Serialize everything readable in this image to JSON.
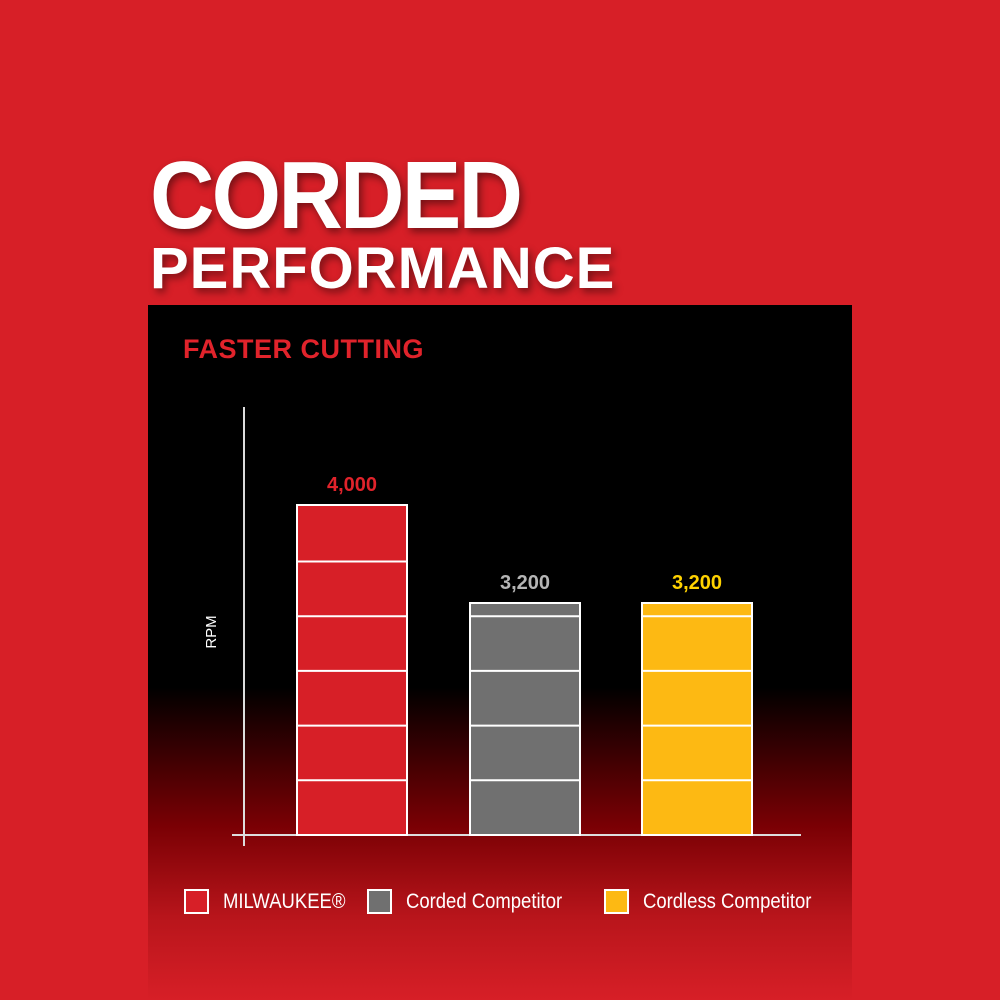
{
  "header": {
    "title_line1": "CORDED",
    "title_line2": "PERFORMANCE"
  },
  "chart_data": {
    "type": "bar",
    "title": "FASTER CUTTING",
    "ylabel": "RPM",
    "xlabel": "",
    "categories": [
      "MILWAUKEE®",
      "Corded Competitor",
      "Cordless Competitor"
    ],
    "values": [
      4000,
      3200,
      3200
    ],
    "data_labels": [
      "4,000",
      "3,200",
      "3,200"
    ],
    "colors": [
      "#d71f27",
      "#707070",
      "#fdb913"
    ],
    "label_colors": [
      "#e1232b",
      "#b5b5b5",
      "#ffd200"
    ],
    "grid": false,
    "legend": {
      "placement": "bottom",
      "entries": [
        "MILWAUKEE®",
        "Corded Competitor",
        "Cordless Competitor"
      ]
    }
  }
}
